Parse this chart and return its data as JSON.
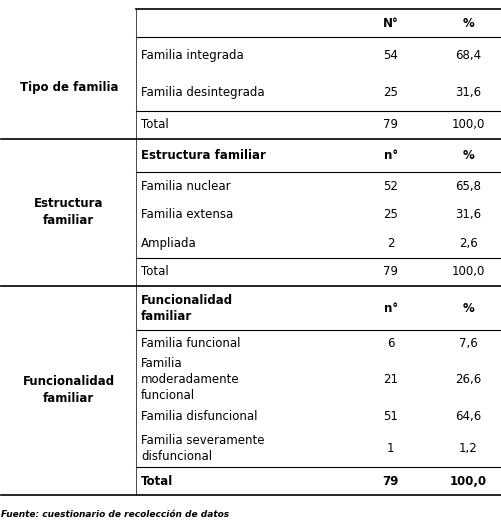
{
  "bg_color": "#ffffff",
  "font_size": 8.5,
  "footer_text": "Fuente: cuestionario de recolección de datos",
  "sections": [
    {
      "row_header": "Tipo de familia",
      "row_header_bold": false,
      "subheader": null,
      "subheader_bold": false,
      "col_header": [
        "N°",
        "%"
      ],
      "col_header_bold": true,
      "rows": [
        {
          "label": "Familia integrada",
          "n": "54",
          "pct": "68,4",
          "bold": false
        },
        {
          "label": "Familia desintegrada",
          "n": "25",
          "pct": "31,6",
          "bold": false
        },
        {
          "label": "Total",
          "n": "79",
          "pct": "100,0",
          "bold": false
        }
      ],
      "total_row_idx": 2
    },
    {
      "row_header": "Estructura\nfamiliar",
      "row_header_bold": true,
      "subheader": "Estructura familiar",
      "subheader_bold": true,
      "col_header": [
        "n°",
        "%"
      ],
      "col_header_bold": true,
      "rows": [
        {
          "label": "Familia nuclear",
          "n": "52",
          "pct": "65,8",
          "bold": false
        },
        {
          "label": "Familia extensa",
          "n": "25",
          "pct": "31,6",
          "bold": false
        },
        {
          "label": "Ampliada",
          "n": "2",
          "pct": "2,6",
          "bold": false
        },
        {
          "label": "Total",
          "n": "79",
          "pct": "100,0",
          "bold": false
        }
      ],
      "total_row_idx": 3
    },
    {
      "row_header": "Funcionalidad\nfamiliar",
      "row_header_bold": true,
      "subheader": "Funcionalidad\nfamiliar",
      "subheader_bold": true,
      "col_header": [
        "n°",
        "%"
      ],
      "col_header_bold": true,
      "rows": [
        {
          "label": "Familia funcional",
          "n": "6",
          "pct": "7,6",
          "bold": false
        },
        {
          "label": "Familia\nmoderadamente\nfuncional",
          "n": "21",
          "pct": "26,6",
          "bold": false
        },
        {
          "label": "Familia disfuncional",
          "n": "51",
          "pct": "64,6",
          "bold": false
        },
        {
          "label": "Familia severamente\ndisfuncional",
          "n": "1",
          "pct": "1,2",
          "bold": false
        },
        {
          "label": "Total",
          "n": "79",
          "pct": "100,0",
          "bold": true
        }
      ],
      "total_row_idx": 4
    }
  ]
}
